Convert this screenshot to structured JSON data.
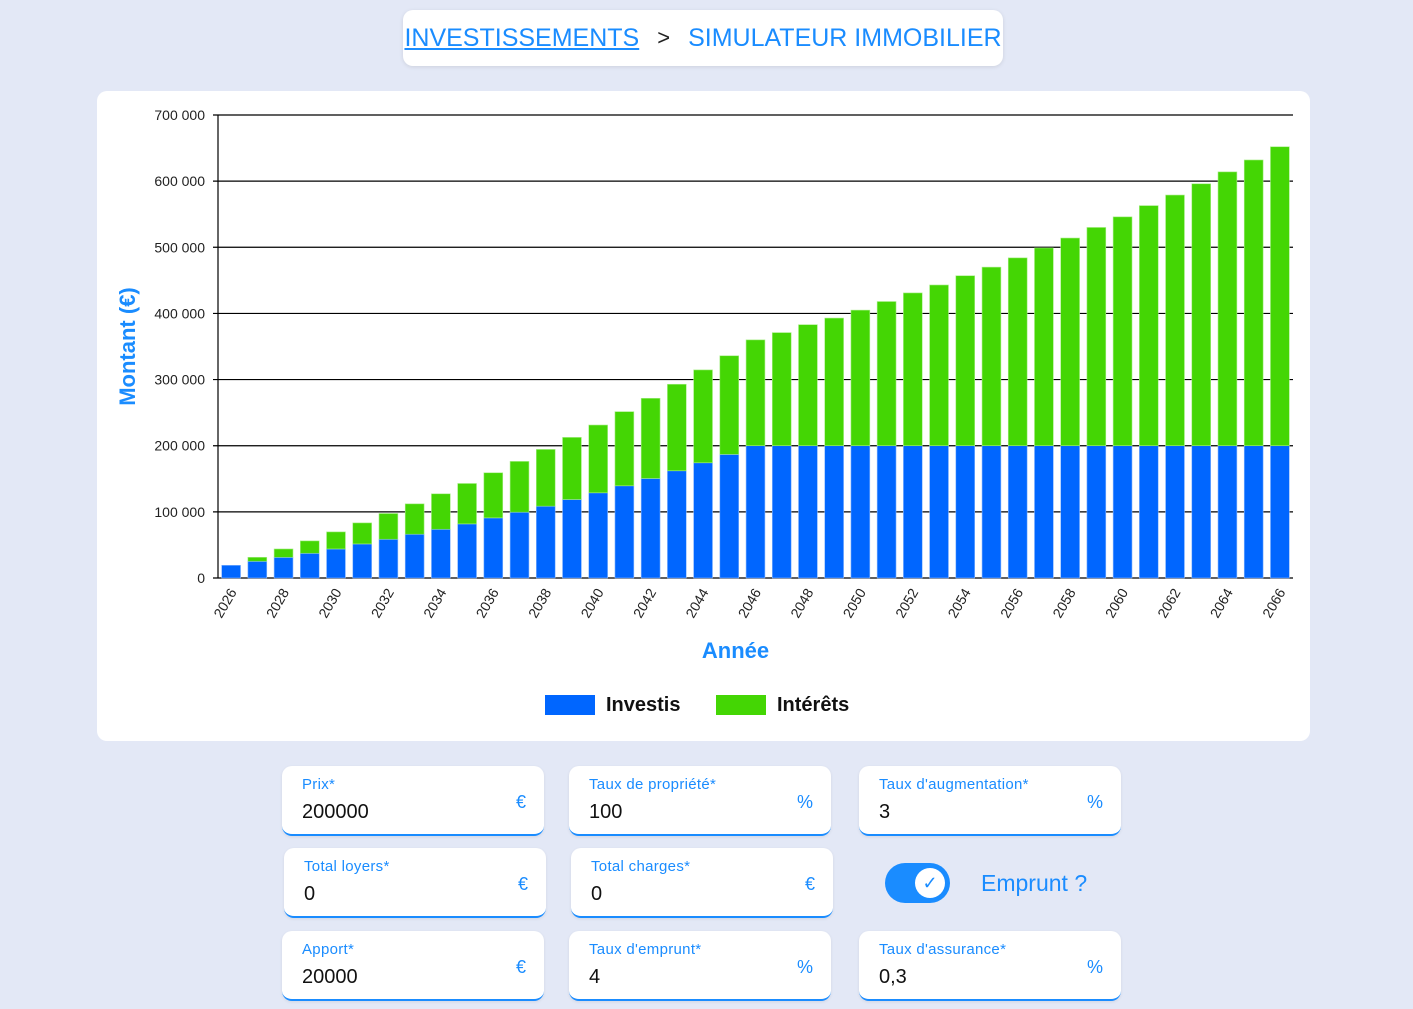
{
  "breadcrumb": {
    "parent": "INVESTISSEMENTS",
    "separator": ">",
    "current": "SIMULATEUR IMMOBILIER"
  },
  "chart_data": {
    "type": "bar",
    "stacked": true,
    "xlabel": "Année",
    "ylabel": "Montant (€)",
    "ylim": [
      0,
      700000
    ],
    "yticks": [
      "0",
      "100 000",
      "200 000",
      "300 000",
      "400 000",
      "500 000",
      "600 000",
      "700 000"
    ],
    "grid": true,
    "legend_position": "bottom",
    "categories": [
      2026,
      2027,
      2028,
      2029,
      2030,
      2031,
      2032,
      2033,
      2034,
      2035,
      2036,
      2037,
      2038,
      2039,
      2040,
      2041,
      2042,
      2043,
      2044,
      2045,
      2046,
      2047,
      2048,
      2049,
      2050,
      2051,
      2052,
      2053,
      2054,
      2055,
      2056,
      2057,
      2058,
      2059,
      2060,
      2061,
      2062,
      2063,
      2064,
      2065,
      2066
    ],
    "series": [
      {
        "name": "Investis",
        "color": "#0066ff",
        "values": [
          19200,
          25300,
          31300,
          37400,
          43900,
          51500,
          58600,
          66200,
          73700,
          81800,
          90900,
          99500,
          108600,
          118700,
          128800,
          139400,
          150500,
          162100,
          174200,
          186900,
          200000,
          200000,
          200000,
          200000,
          200000,
          200000,
          200000,
          200000,
          200000,
          200000,
          200000,
          200000,
          200000,
          200000,
          200000,
          200000,
          200000,
          200000,
          200000,
          200000,
          200000
        ]
      },
      {
        "name": "Intérêts",
        "color": "#44d604",
        "values": [
          0,
          6000,
          12600,
          18700,
          25800,
          31800,
          38900,
          45900,
          53600,
          61100,
          68200,
          76800,
          85800,
          93900,
          102500,
          112100,
          121200,
          130800,
          140400,
          149100,
          160000,
          171000,
          183000,
          193000,
          205000,
          218000,
          231000,
          243000,
          257000,
          270000,
          284000,
          299000,
          314000,
          330000,
          346000,
          363000,
          379000,
          396000,
          414000,
          432000,
          452000
        ]
      }
    ]
  },
  "form": {
    "fields": [
      {
        "label": "Prix*",
        "value": "200000",
        "unit": "€"
      },
      {
        "label": "Taux de propriété*",
        "value": "100",
        "unit": "%"
      },
      {
        "label": "Taux d'augmentation*",
        "value": "3",
        "unit": "%"
      },
      {
        "label": "Total loyers*",
        "value": "0",
        "unit": "€"
      },
      {
        "label": "Total charges*",
        "value": "0",
        "unit": "€"
      },
      {
        "label": "Apport*",
        "value": "20000",
        "unit": "€"
      },
      {
        "label": "Taux d'emprunt*",
        "value": "4",
        "unit": "%"
      },
      {
        "label": "Taux d'assurance*",
        "value": "0,3",
        "unit": "%"
      }
    ],
    "emprunt": {
      "label": "Emprunt ?",
      "checked": true,
      "check_glyph": "✓"
    }
  }
}
